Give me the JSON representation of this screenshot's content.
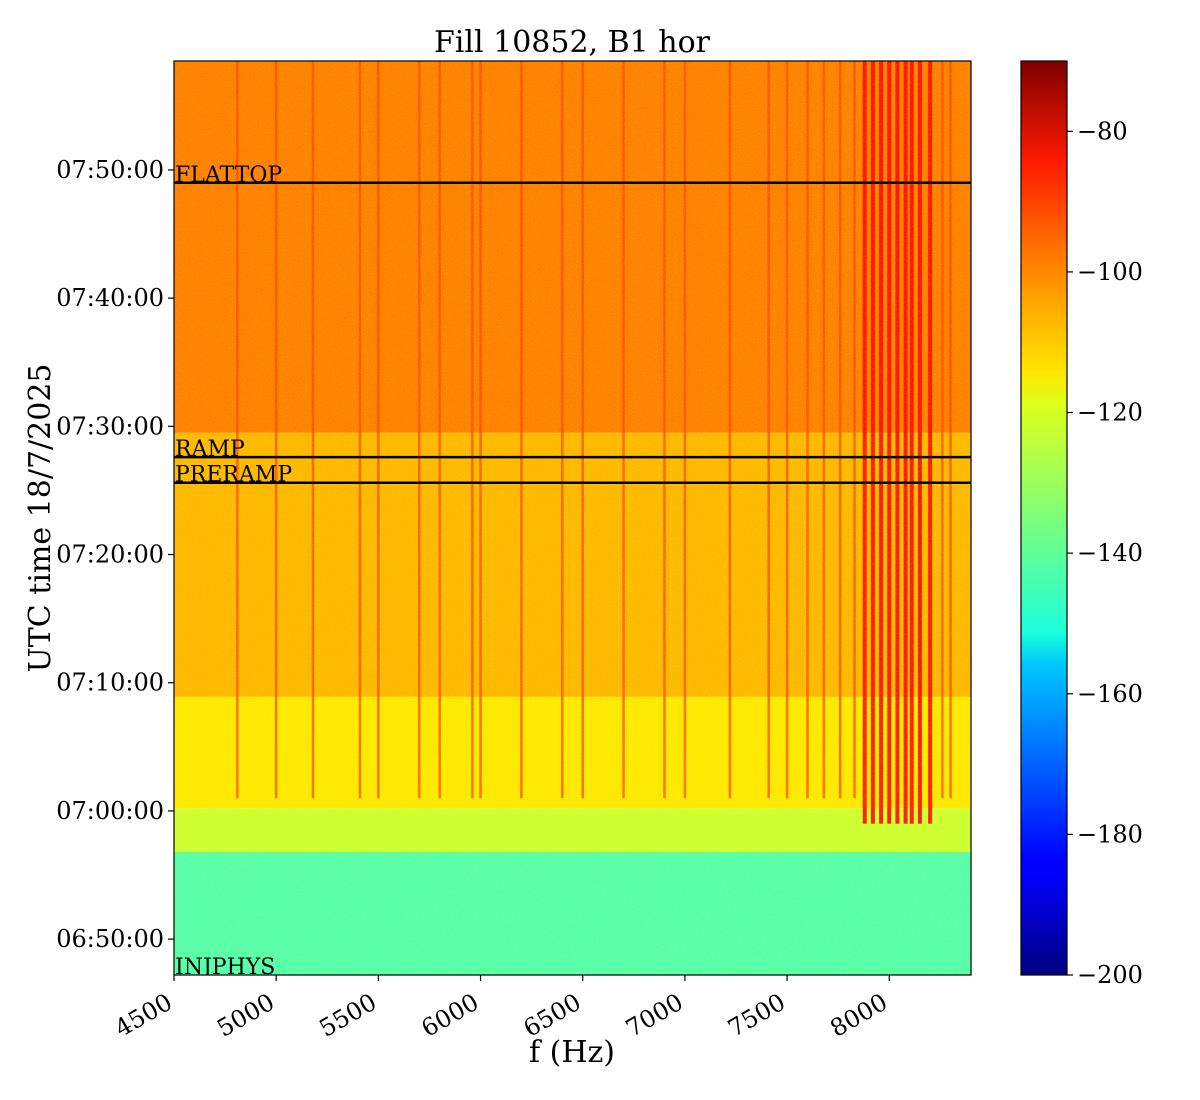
{
  "chart_data": {
    "type": "heatmap",
    "title": "Fill 10852, B1 hor",
    "xlabel": "f (Hz)",
    "ylabel": "UTC time 18/7/2025",
    "xlim": [
      4500,
      8400
    ],
    "ylim_minutes_utc": [
      407.2,
      478.5
    ],
    "x_ticks": [
      4500,
      5000,
      5500,
      6000,
      6500,
      7000,
      7500,
      8000
    ],
    "x_tick_labels": [
      "4500",
      "5000",
      "5500",
      "6000",
      "6500",
      "7000",
      "7500",
      "8000"
    ],
    "y_ticks_minutes_utc": [
      410,
      420,
      430,
      440,
      450,
      460,
      470
    ],
    "y_tick_labels": [
      "06:50:00",
      "07:00:00",
      "07:10:00",
      "07:20:00",
      "07:30:00",
      "07:40:00",
      "07:50:00"
    ],
    "colorbar": {
      "colormap": "jet",
      "vmin": -200,
      "vmax": -70,
      "ticks": [
        -80,
        -100,
        -120,
        -140,
        -160,
        -180,
        -200
      ],
      "tick_labels": [
        "−80",
        "−100",
        "−120",
        "−140",
        "−160",
        "−180",
        "−200"
      ]
    },
    "regions": [
      {
        "from_min": 407.2,
        "to_min": 416.8,
        "level": -140
      },
      {
        "from_min": 416.8,
        "to_min": 420.2,
        "level": -125
      },
      {
        "from_min": 420.2,
        "to_min": 428.9,
        "level": -116
      },
      {
        "from_min": 428.9,
        "to_min": 449.5,
        "level": -110
      },
      {
        "from_min": 449.5,
        "to_min": 478.5,
        "level": -103
      }
    ],
    "beam_mode_markers": [
      {
        "label": "FLATTOP",
        "time_min": 469.0
      },
      {
        "label": "RAMP",
        "time_min": 447.6
      },
      {
        "label": "PRERAMP",
        "time_min": 445.6
      },
      {
        "label": "INJPHYS",
        "time_min": 407.2
      }
    ],
    "spectral_lines_hz": [
      4810,
      5000,
      5180,
      5410,
      5500,
      5700,
      5800,
      5960,
      6000,
      6200,
      6400,
      6500,
      6700,
      6900,
      7000,
      7220,
      7410,
      7500,
      7600,
      7680,
      7760,
      7830,
      7880,
      7920,
      7960,
      8000,
      8040,
      8080,
      8110,
      8150,
      8200,
      8260,
      8300
    ]
  }
}
